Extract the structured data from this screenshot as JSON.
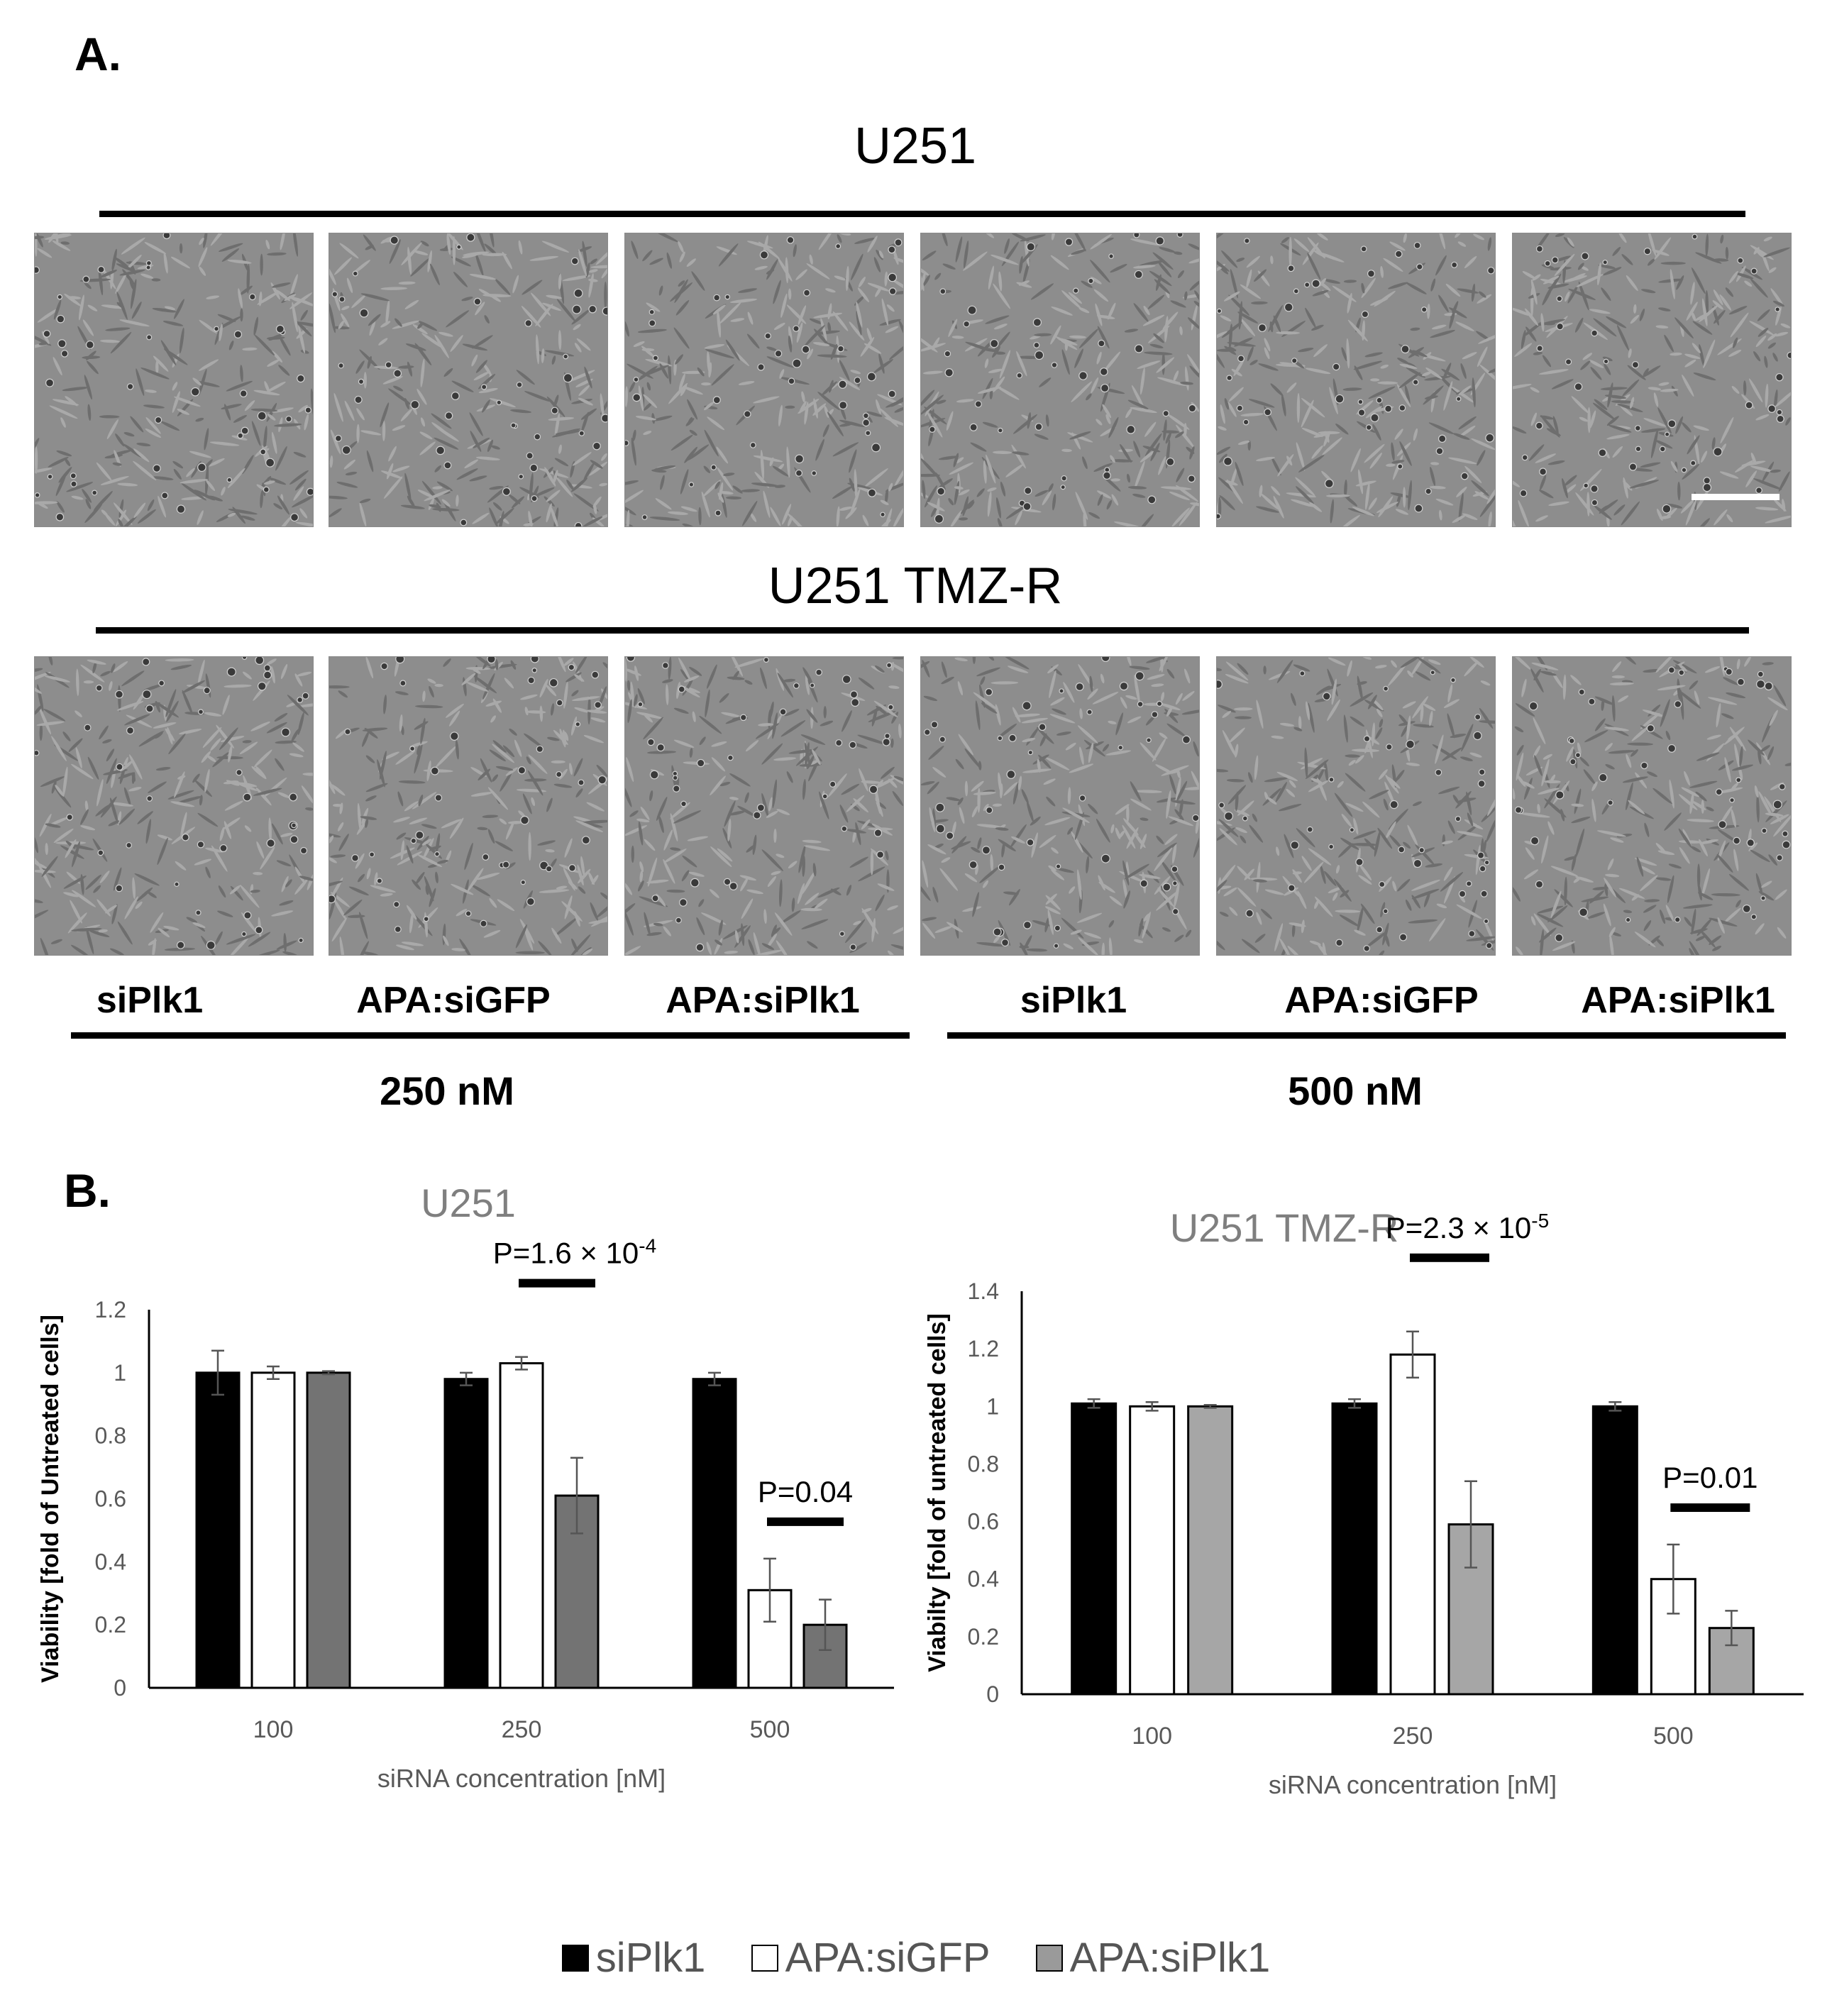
{
  "panel_a": {
    "letter": "A.",
    "row1_title": "U251",
    "row2_title": "U251 TMZ-R",
    "lanes": [
      "siPlk1",
      "APA:siGFP",
      "APA:siPlk1",
      "siPlk1",
      "APA:siGFP",
      "APA:siPlk1"
    ],
    "concentrations": [
      "250 nM",
      "500 nM"
    ]
  },
  "panel_b": {
    "letter": "B."
  },
  "legend": [
    {
      "label": "siPlk1",
      "color": "#000000"
    },
    {
      "label": "APA:siGFP",
      "color": "#ffffff"
    },
    {
      "label": "APA:siPlk1",
      "color": "#808080"
    }
  ],
  "chart_data": [
    {
      "type": "bar",
      "title": "U251",
      "xlabel": "siRNA concentration [nM]",
      "ylabel": "Viability [fold of Untreated cells]",
      "categories": [
        "100",
        "250",
        "500"
      ],
      "ylim": [
        0,
        1.2
      ],
      "yticks": [
        "0",
        "0.2",
        "0.4",
        "0.6",
        "0.8",
        "1",
        "1.2"
      ],
      "series": [
        {
          "name": "siPlk1",
          "color": "#000000",
          "values": [
            1.0,
            0.98,
            0.98
          ],
          "errors": [
            0.07,
            0.02,
            0.02
          ]
        },
        {
          "name": "APA:siGFP",
          "color": "#ffffff",
          "values": [
            1.0,
            1.03,
            0.31
          ],
          "errors": [
            0.02,
            0.02,
            0.1
          ]
        },
        {
          "name": "APA:siPlk1",
          "color": "#737373",
          "values": [
            1.0,
            0.61,
            0.2
          ],
          "errors": [
            0.005,
            0.12,
            0.08
          ]
        }
      ],
      "annotations": [
        {
          "text": "P=1.6 × 10",
          "sup": "-4",
          "category": "250"
        },
        {
          "text": "P=0.04",
          "sup": "",
          "category": "500"
        }
      ]
    },
    {
      "type": "bar",
      "title": "U251 TMZ-R",
      "xlabel": "siRNA concentration [nM]",
      "ylabel": "Viabilty [fold of untreated cells]",
      "categories": [
        "100",
        "250",
        "500"
      ],
      "ylim": [
        0,
        1.4
      ],
      "yticks": [
        "0",
        "0.2",
        "0.4",
        "0.6",
        "0.8",
        "1",
        "1.2",
        "1.4"
      ],
      "series": [
        {
          "name": "siPlk1",
          "color": "#000000",
          "values": [
            1.01,
            1.01,
            1.0
          ],
          "errors": [
            0.015,
            0.015,
            0.015
          ]
        },
        {
          "name": "APA:siGFP",
          "color": "#ffffff",
          "values": [
            1.0,
            1.18,
            0.4
          ],
          "errors": [
            0.015,
            0.08,
            0.12
          ]
        },
        {
          "name": "APA:siPlk1",
          "color": "#a6a6a6",
          "values": [
            1.0,
            0.59,
            0.23
          ],
          "errors": [
            0.005,
            0.15,
            0.06
          ]
        }
      ],
      "annotations": [
        {
          "text": "P=2.3 × 10",
          "sup": "-5",
          "category": "250"
        },
        {
          "text": "P=0.01",
          "sup": "",
          "category": "500"
        }
      ]
    }
  ]
}
